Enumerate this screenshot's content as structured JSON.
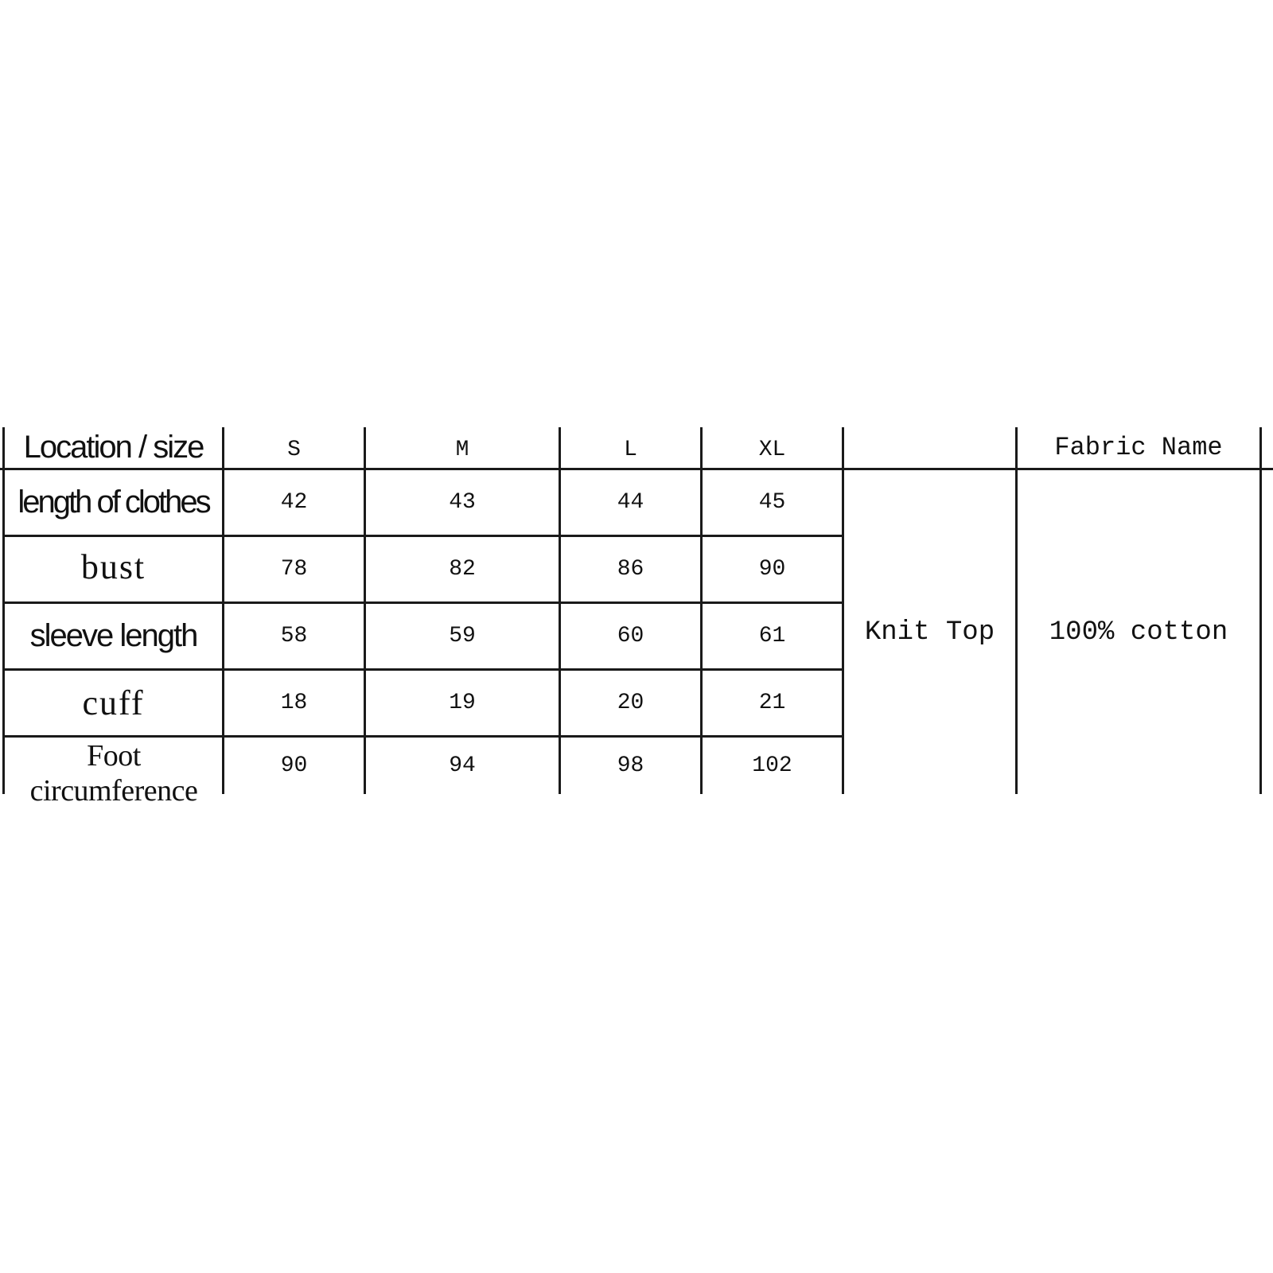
{
  "table": {
    "header": {
      "location_size": "Location / size",
      "sizes": [
        "S",
        "M",
        "L",
        "XL"
      ],
      "blank": "",
      "fabric_name": "Fabric Name"
    },
    "rows": [
      {
        "label": "length of clothes",
        "values": [
          "42",
          "43",
          "44",
          "45"
        ]
      },
      {
        "label": "bust",
        "values": [
          "78",
          "82",
          "86",
          "90"
        ]
      },
      {
        "label": "sleeve length",
        "values": [
          "58",
          "59",
          "60",
          "61"
        ]
      },
      {
        "label": "cuff",
        "values": [
          "18",
          "19",
          "20",
          "21"
        ]
      },
      {
        "label": "Foot circumference",
        "values": [
          "90",
          "94",
          "98",
          "102"
        ]
      }
    ],
    "product_type": "Knit Top",
    "fabric": "100% cotton"
  }
}
